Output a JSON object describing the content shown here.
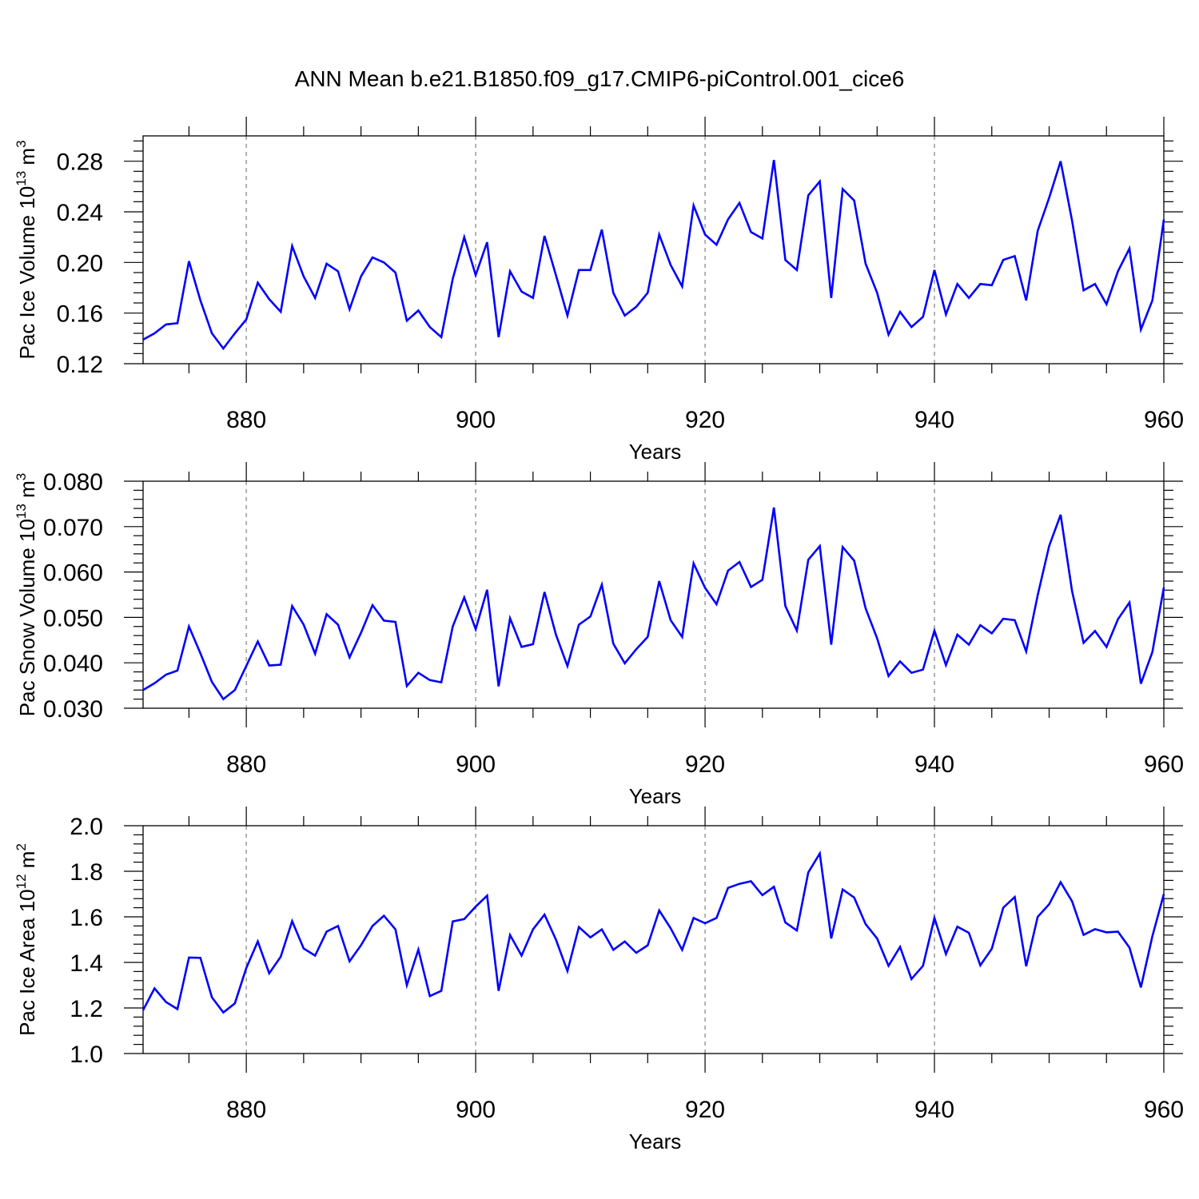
{
  "title": "ANN Mean b.e21.B1850.f09_g17.CMIP6-piControl.001_cice6",
  "colors": {
    "line": "#0000ff",
    "axes": "#000000",
    "grid": "#808080"
  },
  "chart_data": [
    {
      "type": "line",
      "ylabel": {
        "main": "Pac Ice Volume 10",
        "sup": "13",
        "unit": " m",
        "unit_sup": "3"
      },
      "xlabel": "Years",
      "xlim": [
        871,
        960
      ],
      "ylim": [
        0.12,
        0.3
      ],
      "xticks": [
        880,
        900,
        920,
        940,
        960
      ],
      "yticks": [
        0.12,
        0.16,
        0.2,
        0.24,
        0.28
      ],
      "ytick_labels": [
        "0.12",
        "0.16",
        "0.20",
        "0.24",
        "0.28"
      ],
      "x_start": 871,
      "series": [
        {
          "values": [
            0.139,
            0.144,
            0.151,
            0.152,
            0.201,
            0.17,
            0.144,
            0.132,
            0.144,
            0.155,
            0.184,
            0.171,
            0.161,
            0.213,
            0.189,
            0.172,
            0.199,
            0.193,
            0.163,
            0.189,
            0.204,
            0.2,
            0.192,
            0.154,
            0.162,
            0.149,
            0.141,
            0.187,
            0.22,
            0.19,
            0.216,
            0.141,
            0.193,
            0.177,
            0.172,
            0.221,
            0.19,
            0.158,
            0.194,
            0.194,
            0.226,
            0.176,
            0.158,
            0.165,
            0.176,
            0.222,
            0.198,
            0.181,
            0.245,
            0.222,
            0.214,
            0.234,
            0.247,
            0.224,
            0.219,
            0.281,
            0.202,
            0.194,
            0.253,
            0.264,
            0.172,
            0.258,
            0.249,
            0.199,
            0.176,
            0.143,
            0.161,
            0.149,
            0.157,
            0.194,
            0.159,
            0.183,
            0.172,
            0.183,
            0.182,
            0.202,
            0.205,
            0.17,
            0.225,
            0.251,
            0.28,
            0.233,
            0.178,
            0.183,
            0.167,
            0.193,
            0.211,
            0.147,
            0.17,
            0.234
          ]
        }
      ]
    },
    {
      "type": "line",
      "ylabel": {
        "main": "Pac Snow Volume 10",
        "sup": "13",
        "unit": " m",
        "unit_sup": "3"
      },
      "xlabel": "Years",
      "xlim": [
        871,
        960
      ],
      "ylim": [
        0.03,
        0.08
      ],
      "xticks": [
        880,
        900,
        920,
        940,
        960
      ],
      "yticks": [
        0.03,
        0.04,
        0.05,
        0.06,
        0.07,
        0.08
      ],
      "ytick_labels": [
        "0.030",
        "0.040",
        "0.050",
        "0.060",
        "0.070",
        "0.080"
      ],
      "x_start": 871,
      "series": [
        {
          "values": [
            0.034,
            0.0355,
            0.0374,
            0.0383,
            0.048,
            0.0421,
            0.0358,
            0.032,
            0.034,
            0.0393,
            0.0447,
            0.0394,
            0.0396,
            0.0525,
            0.0484,
            0.042,
            0.0507,
            0.0484,
            0.0412,
            0.0466,
            0.0527,
            0.0493,
            0.049,
            0.0349,
            0.0378,
            0.0362,
            0.0357,
            0.048,
            0.0544,
            0.0474,
            0.0561,
            0.0348,
            0.0498,
            0.0435,
            0.0441,
            0.0556,
            0.0462,
            0.0393,
            0.0484,
            0.0502,
            0.0572,
            0.0442,
            0.0399,
            0.043,
            0.0457,
            0.058,
            0.0494,
            0.0457,
            0.0619,
            0.0565,
            0.0529,
            0.0603,
            0.0622,
            0.0567,
            0.0583,
            0.0742,
            0.0525,
            0.0471,
            0.0627,
            0.0657,
            0.044,
            0.0655,
            0.0625,
            0.052,
            0.0454,
            0.0371,
            0.0403,
            0.0378,
            0.0385,
            0.0471,
            0.0395,
            0.0462,
            0.044,
            0.0483,
            0.0465,
            0.0497,
            0.0494,
            0.0425,
            0.0549,
            0.0657,
            0.0726,
            0.0558,
            0.0444,
            0.047,
            0.0435,
            0.0496,
            0.0533,
            0.0354,
            0.0424,
            0.0566
          ]
        }
      ]
    },
    {
      "type": "line",
      "ylabel": {
        "main": "Pac Ice Area 10",
        "sup": "12",
        "unit": " m",
        "unit_sup": "2"
      },
      "xlabel": "Years",
      "xlim": [
        871,
        960
      ],
      "ylim": [
        1.0,
        2.0
      ],
      "xticks": [
        880,
        900,
        920,
        940,
        960
      ],
      "yticks": [
        1.0,
        1.2,
        1.4,
        1.6,
        1.8,
        2.0
      ],
      "ytick_labels": [
        "1.0",
        "1.2",
        "1.4",
        "1.6",
        "1.8",
        "2.0"
      ],
      "x_start": 871,
      "series": [
        {
          "values": [
            1.19,
            1.286,
            1.226,
            1.195,
            1.421,
            1.42,
            1.247,
            1.18,
            1.22,
            1.375,
            1.492,
            1.352,
            1.425,
            1.581,
            1.461,
            1.43,
            1.535,
            1.56,
            1.405,
            1.475,
            1.56,
            1.605,
            1.545,
            1.3,
            1.456,
            1.252,
            1.275,
            1.58,
            1.59,
            1.645,
            1.693,
            1.275,
            1.52,
            1.43,
            1.545,
            1.61,
            1.5,
            1.362,
            1.555,
            1.51,
            1.545,
            1.455,
            1.492,
            1.442,
            1.475,
            1.628,
            1.55,
            1.455,
            1.595,
            1.572,
            1.595,
            1.727,
            1.745,
            1.756,
            1.695,
            1.732,
            1.575,
            1.54,
            1.795,
            1.878,
            1.505,
            1.72,
            1.685,
            1.568,
            1.505,
            1.385,
            1.468,
            1.327,
            1.385,
            1.595,
            1.437,
            1.557,
            1.53,
            1.387,
            1.46,
            1.64,
            1.687,
            1.383,
            1.6,
            1.655,
            1.752,
            1.668,
            1.521,
            1.546,
            1.532,
            1.535,
            1.465,
            1.29,
            1.515,
            1.7
          ]
        }
      ]
    }
  ]
}
